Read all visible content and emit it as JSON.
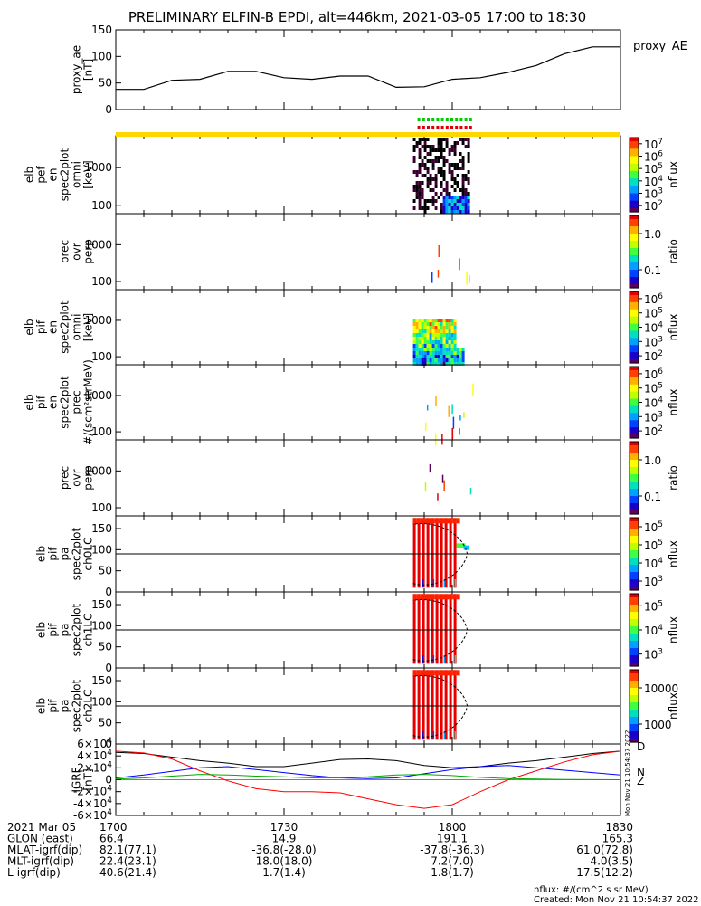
{
  "title": "PRELIMINARY ELFIN-B EPDI, alt=446km, 2021-03-05 17:00 to 18:30",
  "chart_data": [
    {
      "type": "line",
      "name": "proxy_ae",
      "ylabel": [
        "proxy_ae",
        "[nT]"
      ],
      "legend": "proxy_AE",
      "ylim": [
        0,
        150
      ],
      "yticks": [
        "0",
        "50",
        "100",
        "150"
      ],
      "x_minutes": [
        0,
        5,
        10,
        15,
        20,
        25,
        30,
        35,
        40,
        45,
        50,
        55,
        60,
        65,
        70,
        75,
        80,
        85,
        90
      ],
      "values": [
        38,
        38,
        55,
        57,
        72,
        72,
        60,
        57,
        63,
        63,
        42,
        43,
        57,
        60,
        70,
        83,
        105,
        118,
        118
      ],
      "color": "#000000"
    },
    {
      "type": "heatmap",
      "name": "elb_pef_en_spec2plot_omni",
      "ylabel": [
        "elb",
        "pef",
        "en",
        "spec2plot",
        "omni",
        "[keV]"
      ],
      "yscale": "log",
      "yticks": [
        "100",
        "1000"
      ],
      "colorbar": {
        "label": "nflux",
        "ticks": [
          "10²",
          "10³",
          "10⁴",
          "10⁵",
          "10⁶",
          "10⁷"
        ]
      }
    },
    {
      "type": "heatmap",
      "name": "prec_ovr_perp",
      "ylabel": [
        "prec",
        "ovr",
        "perp"
      ],
      "yscale": "log",
      "yticks": [
        "100",
        "1000"
      ],
      "colorbar": {
        "label": "ratio",
        "ticks": [
          "0.1",
          "1.0"
        ]
      }
    },
    {
      "type": "heatmap",
      "name": "elb_pif_en_spec2plot_omni",
      "ylabel": [
        "elb",
        "pif",
        "en",
        "spec2plot",
        "omni",
        "[keV]"
      ],
      "yscale": "log",
      "yticks": [
        "100",
        "1000"
      ],
      "colorbar": {
        "label": "nflux",
        "ticks": [
          "10²",
          "10³",
          "10⁴",
          "10⁵",
          "10⁶"
        ]
      }
    },
    {
      "type": "heatmap",
      "name": "elb_pif_en_spec2plot_prec",
      "ylabel": [
        "elb",
        "pif",
        "en",
        "spec2plot",
        "prec",
        "#/(scm²strMeV)"
      ],
      "yscale": "log",
      "yticks": [
        "100",
        "1000"
      ],
      "colorbar": {
        "label": "nflux",
        "ticks": [
          "10²",
          "10³",
          "10⁴",
          "10⁵",
          "10⁶"
        ]
      }
    },
    {
      "type": "heatmap",
      "name": "prec_ovr_perp_2",
      "ylabel": [
        "prec",
        "ovr",
        "perp"
      ],
      "yscale": "log",
      "yticks": [
        "100",
        "1000"
      ],
      "colorbar": {
        "label": "ratio",
        "ticks": [
          "0.1",
          "1.0"
        ]
      }
    },
    {
      "type": "heatmap",
      "name": "elb_pif_pa_spec2plot_ch0LC",
      "ylabel": [
        "elb",
        "pif",
        "pa",
        "spec2plot",
        "ch0LC"
      ],
      "yticks": [
        "0",
        "50",
        "100",
        "150"
      ],
      "colorbar": {
        "label": "nflux",
        "ticks": [
          "10³",
          "10⁴",
          "10⁵",
          "10⁵"
        ]
      }
    },
    {
      "type": "heatmap",
      "name": "elb_pif_pa_spec2plot_ch1LC",
      "ylabel": [
        "elb",
        "pif",
        "pa",
        "spec2plot",
        "ch1LC"
      ],
      "yticks": [
        "0",
        "50",
        "100",
        "150"
      ],
      "colorbar": {
        "label": "nflux",
        "ticks": [
          "10³",
          "10⁴",
          "10⁵"
        ]
      }
    },
    {
      "type": "heatmap",
      "name": "elb_pif_pa_spec2plot_ch2LC",
      "ylabel": [
        "elb",
        "pif",
        "pa",
        "spec2plot",
        "ch2LC"
      ],
      "yticks": [
        "0",
        "50",
        "100",
        "150"
      ],
      "colorbar": {
        "label": "nflux",
        "ticks": [
          "1000",
          "10000"
        ]
      }
    },
    {
      "type": "line",
      "name": "IGRF",
      "ylabel": [
        "IGRF",
        "[nT]"
      ],
      "ylim": [
        -60000,
        60000
      ],
      "yticks": [
        "-6×10⁴",
        "-4×10⁴",
        "-2×10⁴",
        "0",
        "2×10⁴",
        "4×10⁴",
        "6×10⁴"
      ],
      "x_minutes": [
        0,
        5,
        10,
        15,
        20,
        25,
        30,
        35,
        40,
        45,
        50,
        55,
        60,
        65,
        70,
        75,
        80,
        85,
        90
      ],
      "series": [
        {
          "color": "#000000",
          "values": [
            46000,
            44000,
            38000,
            32000,
            28000,
            22000,
            22000,
            28000,
            34000,
            35000,
            32000,
            24000,
            20000,
            22000,
            28000,
            32000,
            38000,
            44000,
            48000
          ]
        },
        {
          "color": "#0000ff",
          "values": [
            3000,
            8000,
            14000,
            20000,
            22000,
            17000,
            12000,
            7000,
            3000,
            2000,
            3000,
            10000,
            17000,
            22000,
            24000,
            20000,
            16000,
            12000,
            8000
          ]
        },
        {
          "color": "#ff0000",
          "values": [
            48000,
            45000,
            35000,
            15000,
            -2000,
            -15000,
            -20000,
            -20000,
            -22000,
            -32000,
            -42000,
            -48000,
            -42000,
            -20000,
            0,
            15000,
            30000,
            42000,
            48000
          ]
        },
        {
          "color": "#00aa00",
          "values": [
            1000,
            3000,
            6000,
            9000,
            8000,
            6000,
            5000,
            3000,
            3000,
            5000,
            8000,
            9000,
            7000,
            4000,
            2000,
            1000,
            500,
            200,
            0
          ]
        }
      ],
      "end_labels": [
        "D",
        "N",
        "Z"
      ]
    }
  ],
  "xaxis": {
    "rows": [
      {
        "label": "2021 Mar 05",
        "values": [
          "1700",
          "1730",
          "1800",
          "1830"
        ]
      },
      {
        "label": "GLON (east)",
        "values": [
          "66.4",
          "14.9",
          "191.1",
          "165.3"
        ]
      },
      {
        "label": "MLAT-igrf(dip)",
        "values": [
          "82.1(77.1)",
          "-36.8(-28.0)",
          "-37.8(-36.3)",
          "61.0(72.8)"
        ]
      },
      {
        "label": "MLT-igrf(dip)",
        "values": [
          "22.4(23.1)",
          "18.0(18.0)",
          "7.2(7.0)",
          "4.0(3.5)"
        ]
      },
      {
        "label": "L-igrf(dip)",
        "values": [
          "40.6(21.4)",
          "1.7(1.4)",
          "1.8(1.7)",
          "17.5(12.2)"
        ]
      }
    ]
  },
  "footer": {
    "units": "nflux: #/(cm^2 s sr MeV)",
    "created": "Created: Mon Nov 21 10:54:37 2022",
    "stamp": "Mon Nov 21 10:54:37 2022"
  }
}
